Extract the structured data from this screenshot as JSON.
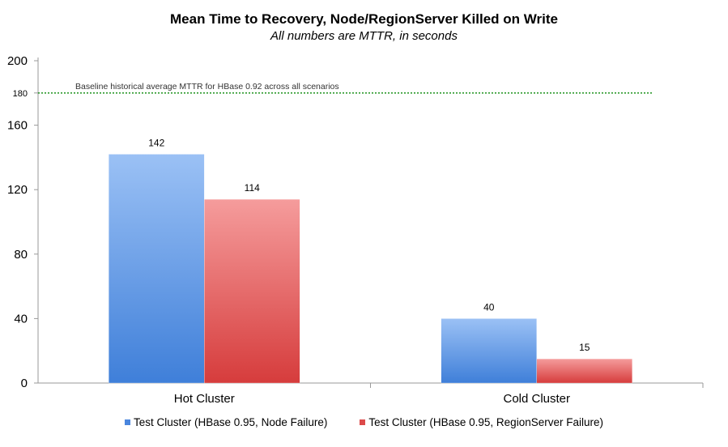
{
  "chart_data": {
    "type": "bar",
    "title": "Mean Time to Recovery, Node/RegionServer Killed on Write",
    "subtitle": "All numbers are MTTR, in seconds",
    "categories": [
      "Hot Cluster",
      "Cold Cluster"
    ],
    "series": [
      {
        "name": "Test Cluster (HBase 0.95, Node Failure)",
        "values": [
          142,
          40
        ],
        "color": "#5b93e3"
      },
      {
        "name": "Test Cluster (HBase 0.95, RegionServer Failure)",
        "values": [
          114,
          15
        ],
        "color": "#e05a5a"
      }
    ],
    "ylim": [
      0,
      200
    ],
    "yticks": [
      0,
      40,
      80,
      120,
      160,
      200
    ],
    "reference_line": {
      "value": 180,
      "tick_label": "180",
      "label": "Baseline historical average MTTR for HBase 0.92 across all scenarios",
      "color": "#2e9a2e"
    },
    "data_labels": [
      "142",
      "114",
      "40",
      "15"
    ],
    "legend_position": "bottom"
  }
}
